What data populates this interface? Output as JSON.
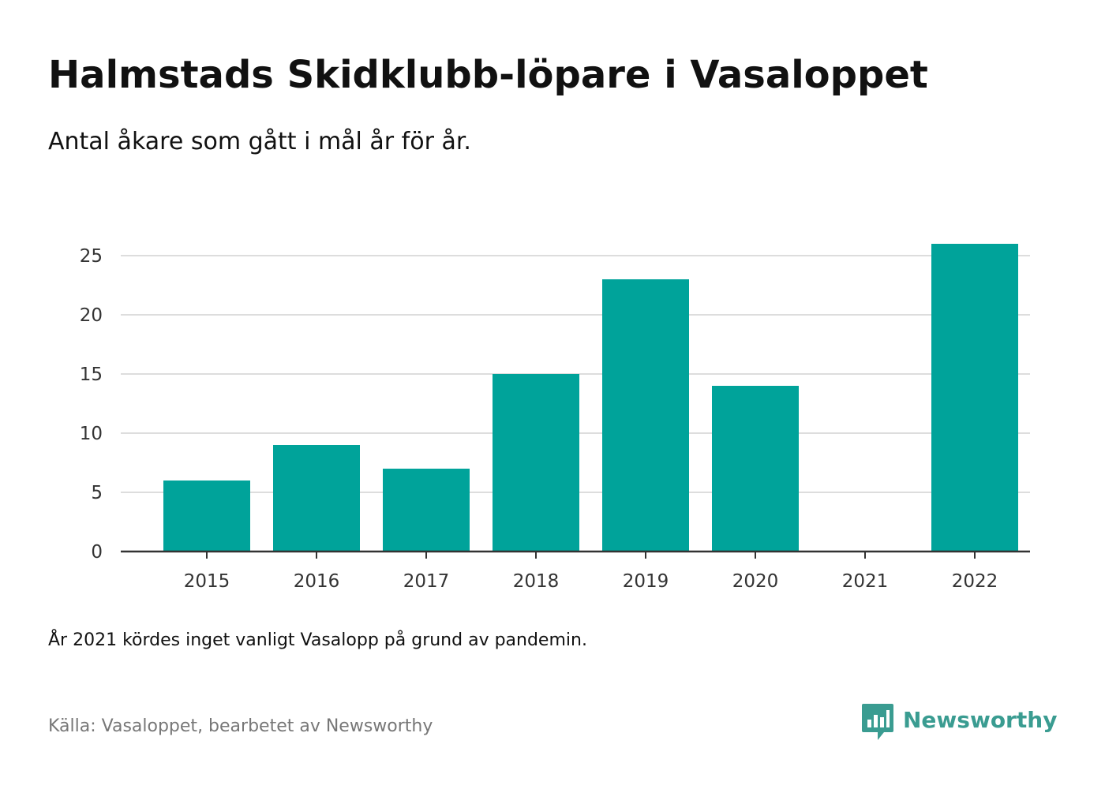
{
  "header": {
    "title": "Halmstads Skidklubb-löpare i Vasaloppet",
    "subtitle": "Antal åkare som gått i mål år för år."
  },
  "chart_data": {
    "type": "bar",
    "categories": [
      "2015",
      "2016",
      "2017",
      "2018",
      "2019",
      "2020",
      "2021",
      "2022"
    ],
    "values": [
      6,
      9,
      7,
      15,
      23,
      14,
      0,
      26
    ],
    "y_ticks": [
      0,
      5,
      10,
      15,
      20,
      25
    ],
    "ylim": [
      0,
      27
    ],
    "grid": true,
    "bar_color": "#00a39a",
    "grid_color": "#dddddd",
    "axis_color": "#333333"
  },
  "footer": {
    "note": "År 2021 kördes inget vanligt Vasalopp på grund av pandemin.",
    "source": "Källa: Vasaloppet, bearbetet av Newsworthy",
    "brand_name": "Newsworthy",
    "brand_icon": "newsworthy-logo-icon",
    "brand_color": "#3a9c91"
  }
}
